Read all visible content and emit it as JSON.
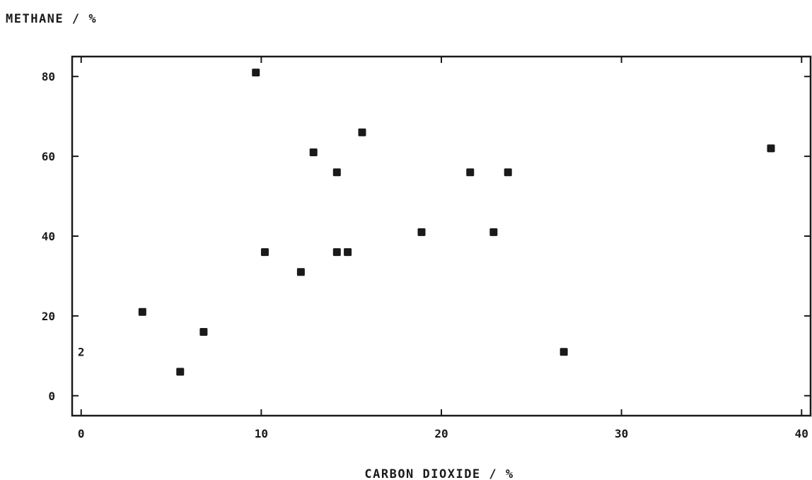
{
  "chart_data": {
    "type": "scatter",
    "ylabel": "METHANE / %",
    "xlabel": "CARBON DIOXIDE / %",
    "xlim": [
      -0.5,
      40.5
    ],
    "ylim": [
      -5,
      85
    ],
    "x_ticks": [
      {
        "value": 0,
        "label": "0"
      },
      {
        "value": 10,
        "label": "10"
      },
      {
        "value": 20,
        "label": "20"
      },
      {
        "value": 30,
        "label": "30"
      },
      {
        "value": 40,
        "label": "40"
      }
    ],
    "y_ticks": [
      {
        "value": 0,
        "label": "0"
      },
      {
        "value": 20,
        "label": "20"
      },
      {
        "value": 40,
        "label": "40"
      },
      {
        "value": 60,
        "label": "60"
      },
      {
        "value": 80,
        "label": "80"
      }
    ],
    "grid": false,
    "marker_color": "#1a1a1a",
    "series": [
      {
        "points": [
          {
            "x": 3.4,
            "y": 21
          },
          {
            "x": 5.5,
            "y": 6
          },
          {
            "x": 6.8,
            "y": 16
          },
          {
            "x": 9.7,
            "y": 81
          },
          {
            "x": 10.2,
            "y": 36
          },
          {
            "x": 12.2,
            "y": 31
          },
          {
            "x": 12.9,
            "y": 61
          },
          {
            "x": 14.2,
            "y": 56
          },
          {
            "x": 14.2,
            "y": 36
          },
          {
            "x": 14.8,
            "y": 36
          },
          {
            "x": 15.6,
            "y": 66
          },
          {
            "x": 18.9,
            "y": 41
          },
          {
            "x": 21.6,
            "y": 56
          },
          {
            "x": 22.9,
            "y": 41
          },
          {
            "x": 23.7,
            "y": 56
          },
          {
            "x": 26.8,
            "y": 11
          },
          {
            "x": 38.3,
            "y": 62
          }
        ]
      }
    ],
    "annotations": [
      {
        "text": "2",
        "x": 0,
        "y": 11
      }
    ]
  }
}
